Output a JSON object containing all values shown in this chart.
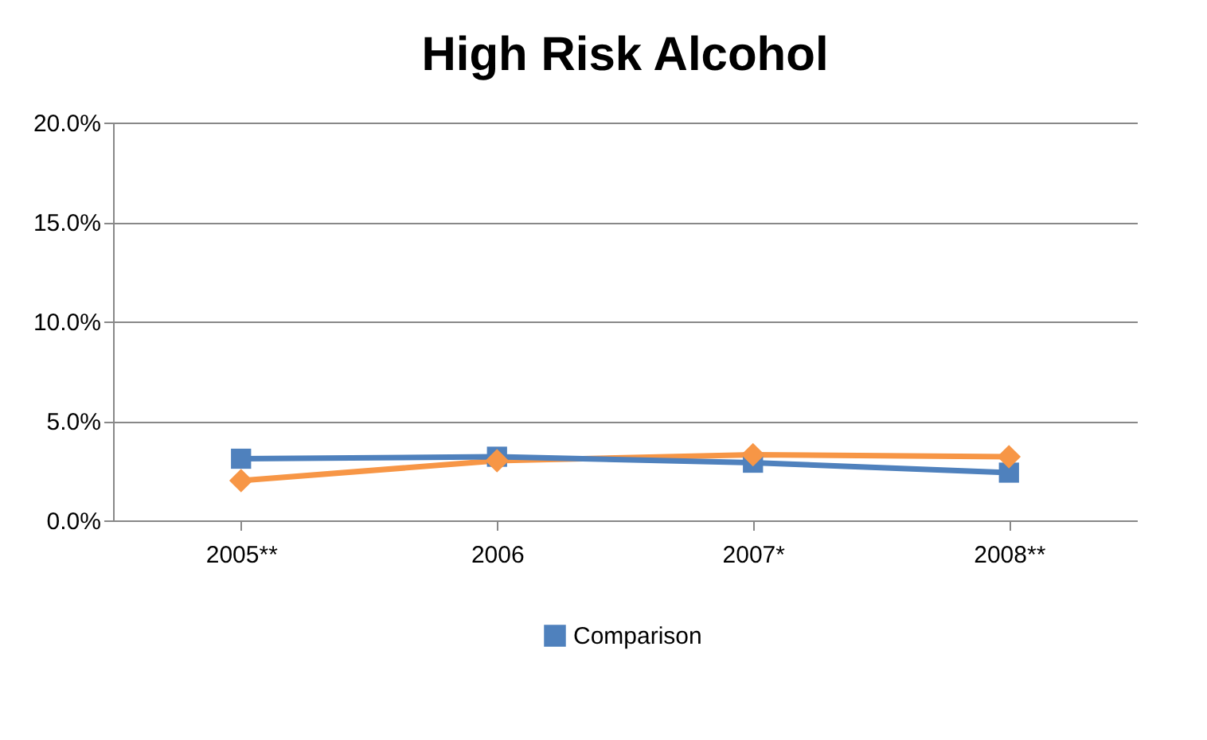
{
  "chart_data": {
    "type": "line",
    "title": "High Risk Alcohol",
    "categories": [
      "2005**",
      "2006",
      "2007*",
      "2008**"
    ],
    "series": [
      {
        "color": "#f79646",
        "marker": "diamond",
        "values": [
          2.0,
          3.0,
          3.3,
          3.2
        ]
      },
      {
        "name": "Comparison",
        "color": "#4f81bd",
        "marker": "square",
        "values": [
          3.1,
          3.2,
          2.9,
          2.4
        ]
      }
    ],
    "ylim": [
      0,
      20
    ],
    "yticks": [
      {
        "value": 0,
        "label": "0.0%"
      },
      {
        "value": 5,
        "label": "5.0%"
      },
      {
        "value": 10,
        "label": "10.0%"
      },
      {
        "value": 15,
        "label": "15.0%"
      },
      {
        "value": 20,
        "label": "20.0%"
      }
    ],
    "grid": "y",
    "legend": "bottom"
  }
}
